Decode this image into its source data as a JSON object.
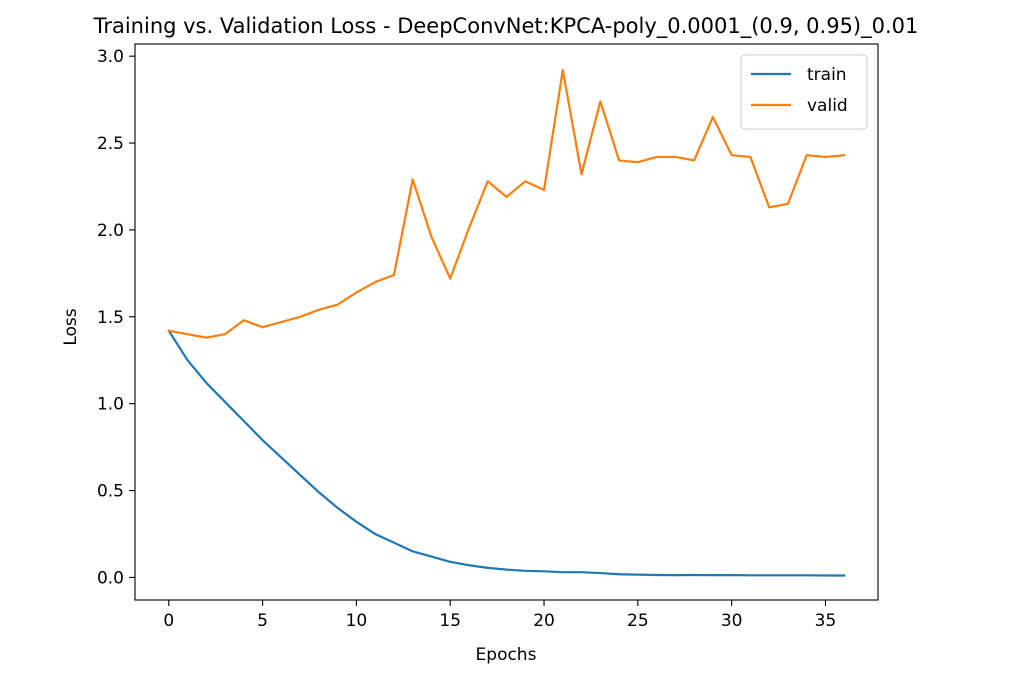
{
  "chart_data": {
    "type": "line",
    "title": "Training vs. Validation Loss - DeepConvNet:KPCA-poly_0.0001_(0.9, 0.95)_0.01",
    "xlabel": "Epochs",
    "ylabel": "Loss",
    "xlim": [
      -1.8,
      37.8
    ],
    "ylim": [
      -0.13,
      3.07
    ],
    "xticks": [
      0,
      5,
      10,
      15,
      20,
      25,
      30,
      35
    ],
    "yticks": [
      0.0,
      0.5,
      1.0,
      1.5,
      2.0,
      2.5,
      3.0
    ],
    "xtick_labels": [
      "0",
      "5",
      "10",
      "15",
      "20",
      "25",
      "30",
      "35"
    ],
    "ytick_labels": [
      "0.0",
      "0.5",
      "1.0",
      "1.5",
      "2.0",
      "2.5",
      "3.0"
    ],
    "grid": false,
    "legend_position": "top-right",
    "x": [
      0,
      1,
      2,
      3,
      4,
      5,
      6,
      7,
      8,
      9,
      10,
      11,
      12,
      13,
      14,
      15,
      16,
      17,
      18,
      19,
      20,
      21,
      22,
      23,
      24,
      25,
      26,
      27,
      28,
      29,
      30,
      31,
      32,
      33,
      34,
      35,
      36
    ],
    "series": [
      {
        "name": "train",
        "color": "#1f77b4",
        "values": [
          1.42,
          1.25,
          1.12,
          1.01,
          0.9,
          0.79,
          0.69,
          0.59,
          0.49,
          0.4,
          0.32,
          0.25,
          0.2,
          0.15,
          0.12,
          0.09,
          0.07,
          0.055,
          0.045,
          0.038,
          0.035,
          0.03,
          0.03,
          0.025,
          0.018,
          0.016,
          0.014,
          0.013,
          0.014,
          0.013,
          0.013,
          0.012,
          0.012,
          0.012,
          0.012,
          0.011,
          0.011
        ]
      },
      {
        "name": "valid",
        "color": "#ff7f0e",
        "values": [
          1.42,
          1.4,
          1.38,
          1.4,
          1.48,
          1.44,
          1.47,
          1.5,
          1.54,
          1.57,
          1.64,
          1.7,
          1.74,
          2.29,
          1.96,
          1.72,
          2.01,
          2.28,
          2.19,
          2.28,
          2.23,
          2.92,
          2.32,
          2.74,
          2.4,
          2.39,
          2.42,
          2.42,
          2.4,
          2.65,
          2.43,
          2.42,
          2.13,
          2.15,
          2.43,
          2.42,
          2.43
        ]
      }
    ]
  }
}
